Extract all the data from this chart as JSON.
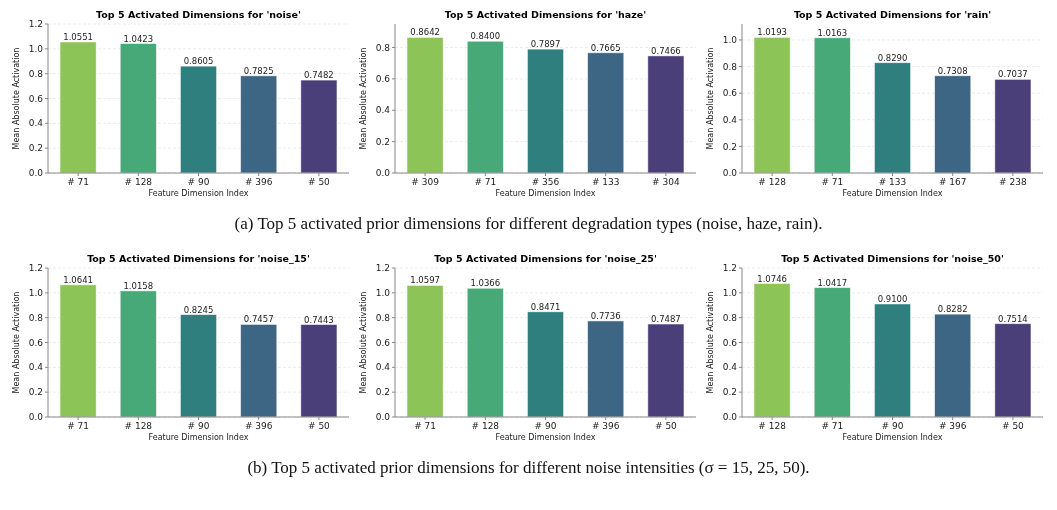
{
  "chart_data": [
    {
      "type": "bar",
      "title": "Top 5 Activated Dimensions for 'noise'",
      "xlabel": "Feature Dimension Index",
      "ylabel": "Mean Absolute Activation",
      "categories": [
        "# 71",
        "# 128",
        "# 90",
        "# 396",
        "# 50"
      ],
      "values": [
        1.0551,
        1.0423,
        0.8605,
        0.7825,
        0.7482
      ],
      "value_labels": [
        "1.0551",
        "1.0423",
        "0.8605",
        "0.7825",
        "0.7482"
      ],
      "colors": [
        "#8dc457",
        "#47a878",
        "#2e7f7e",
        "#3d6584",
        "#4a3f78"
      ],
      "ylim": [
        0,
        1.2
      ],
      "yticks": [
        {
          "value": 0,
          "label": "0.0"
        },
        {
          "value": 0.2,
          "label": "0.2"
        },
        {
          "value": 0.4,
          "label": "0.4"
        },
        {
          "value": 0.6,
          "label": "0.6"
        },
        {
          "value": 0.8,
          "label": "0.8"
        },
        {
          "value": 1.0,
          "label": "1.0"
        },
        {
          "value": 1.2,
          "label": "1.2"
        }
      ],
      "grid": "y",
      "annotations": [
        "(a) Top 5 activated prior dimensions for different degradation types (noise, haze, rain)."
      ]
    },
    {
      "type": "bar",
      "title": "Top 5 Activated Dimensions for 'haze'",
      "xlabel": "Feature Dimension Index",
      "ylabel": "Mean Absolute Activation",
      "categories": [
        "# 309",
        "# 71",
        "# 356",
        "# 133",
        "# 304"
      ],
      "values": [
        0.8642,
        0.84,
        0.7897,
        0.7665,
        0.7466
      ],
      "value_labels": [
        "0.8642",
        "0.8400",
        "0.7897",
        "0.7665",
        "0.7466"
      ],
      "colors": [
        "#8dc457",
        "#47a878",
        "#2e7f7e",
        "#3d6584",
        "#4a3f78"
      ],
      "ylim": [
        0,
        0.95
      ],
      "yticks": [
        {
          "value": 0,
          "label": "0.0"
        },
        {
          "value": 0.2,
          "label": "0.2"
        },
        {
          "value": 0.4,
          "label": "0.4"
        },
        {
          "value": 0.6,
          "label": "0.6"
        },
        {
          "value": 0.8,
          "label": "0.8"
        }
      ],
      "grid": "y"
    },
    {
      "type": "bar",
      "title": "Top 5 Activated Dimensions for 'rain'",
      "xlabel": "Feature Dimension Index",
      "ylabel": "Mean Absolute Activation",
      "categories": [
        "# 128",
        "# 71",
        "# 133",
        "# 167",
        "# 238"
      ],
      "values": [
        1.0193,
        1.0163,
        0.829,
        0.7308,
        0.7037
      ],
      "value_labels": [
        "1.0193",
        "1.0163",
        "0.8290",
        "0.7308",
        "0.7037"
      ],
      "colors": [
        "#8dc457",
        "#47a878",
        "#2e7f7e",
        "#3d6584",
        "#4a3f78"
      ],
      "ylim": [
        0,
        1.12
      ],
      "yticks": [
        {
          "value": 0,
          "label": "0.0"
        },
        {
          "value": 0.2,
          "label": "0.2"
        },
        {
          "value": 0.4,
          "label": "0.4"
        },
        {
          "value": 0.6,
          "label": "0.6"
        },
        {
          "value": 0.8,
          "label": "0.8"
        },
        {
          "value": 1.0,
          "label": "1.0"
        }
      ],
      "grid": "y"
    },
    {
      "type": "bar",
      "title": "Top 5 Activated Dimensions for 'noise_15'",
      "xlabel": "Feature Dimension Index",
      "ylabel": "Mean Absolute Activation",
      "categories": [
        "# 71",
        "# 128",
        "# 90",
        "# 396",
        "# 50"
      ],
      "values": [
        1.0641,
        1.0158,
        0.8245,
        0.7457,
        0.7443
      ],
      "value_labels": [
        "1.0641",
        "1.0158",
        "0.8245",
        "0.7457",
        "0.7443"
      ],
      "colors": [
        "#8dc457",
        "#47a878",
        "#2e7f7e",
        "#3d6584",
        "#4a3f78"
      ],
      "ylim": [
        0,
        1.2
      ],
      "yticks": [
        {
          "value": 0,
          "label": "0.0"
        },
        {
          "value": 0.2,
          "label": "0.2"
        },
        {
          "value": 0.4,
          "label": "0.4"
        },
        {
          "value": 0.6,
          "label": "0.6"
        },
        {
          "value": 0.8,
          "label": "0.8"
        },
        {
          "value": 1.0,
          "label": "1.0"
        },
        {
          "value": 1.2,
          "label": "1.2"
        }
      ],
      "grid": "y",
      "annotations": [
        "(b) Top 5 activated prior dimensions for different noise intensities (σ = 15, 25, 50)."
      ]
    },
    {
      "type": "bar",
      "title": "Top 5 Activated Dimensions for 'noise_25'",
      "xlabel": "Feature Dimension Index",
      "ylabel": "Mean Absolute Activation",
      "categories": [
        "# 71",
        "# 128",
        "# 90",
        "# 396",
        "# 50"
      ],
      "values": [
        1.0597,
        1.0366,
        0.8471,
        0.7736,
        0.7487
      ],
      "value_labels": [
        "1.0597",
        "1.0366",
        "0.8471",
        "0.7736",
        "0.7487"
      ],
      "colors": [
        "#8dc457",
        "#47a878",
        "#2e7f7e",
        "#3d6584",
        "#4a3f78"
      ],
      "ylim": [
        0,
        1.2
      ],
      "yticks": [
        {
          "value": 0,
          "label": "0.0"
        },
        {
          "value": 0.2,
          "label": "0.2"
        },
        {
          "value": 0.4,
          "label": "0.4"
        },
        {
          "value": 0.6,
          "label": "0.6"
        },
        {
          "value": 0.8,
          "label": "0.8"
        },
        {
          "value": 1.0,
          "label": "1.0"
        },
        {
          "value": 1.2,
          "label": "1.2"
        }
      ],
      "grid": "y"
    },
    {
      "type": "bar",
      "title": "Top 5 Activated Dimensions for 'noise_50'",
      "xlabel": "Feature Dimension Index",
      "ylabel": "Mean Absolute Activation",
      "categories": [
        "# 128",
        "# 71",
        "# 90",
        "# 396",
        "# 50"
      ],
      "values": [
        1.0746,
        1.0417,
        0.91,
        0.8282,
        0.7514
      ],
      "value_labels": [
        "1.0746",
        "1.0417",
        "0.9100",
        "0.8282",
        "0.7514"
      ],
      "colors": [
        "#8dc457",
        "#47a878",
        "#2e7f7e",
        "#3d6584",
        "#4a3f78"
      ],
      "ylim": [
        0,
        1.2
      ],
      "yticks": [
        {
          "value": 0,
          "label": "0.0"
        },
        {
          "value": 0.2,
          "label": "0.2"
        },
        {
          "value": 0.4,
          "label": "0.4"
        },
        {
          "value": 0.6,
          "label": "0.6"
        },
        {
          "value": 0.8,
          "label": "0.8"
        },
        {
          "value": 1.0,
          "label": "1.0"
        },
        {
          "value": 1.2,
          "label": "1.2"
        }
      ],
      "grid": "y"
    }
  ]
}
